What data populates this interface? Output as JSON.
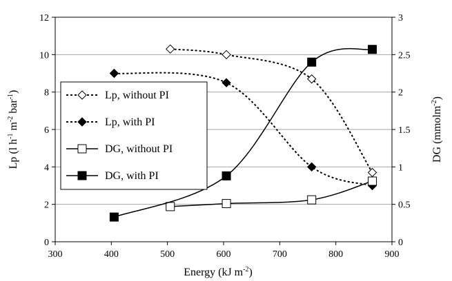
{
  "chart_data": {
    "type": "line",
    "xlabel": "Energy (kJ m",
    "xlabel_sup": "-2",
    "xlabel_end": ")",
    "ylabel_left": {
      "a": "Lp (l h",
      "s1": "-1",
      "b": " m",
      "s2": "-2",
      "c": " bar",
      "s3": "-1",
      "d": ")"
    },
    "ylabel_right": {
      "a": "DG (mmolm",
      "s1": "-2",
      "b": ")"
    },
    "xlim": [
      300,
      900
    ],
    "ylim_left": [
      0,
      12
    ],
    "ylim_right": [
      0,
      3
    ],
    "x_ticks": [
      300,
      400,
      500,
      600,
      700,
      800,
      900
    ],
    "y_left_ticks": [
      0,
      2,
      4,
      6,
      8,
      10,
      12
    ],
    "y_right_ticks": [
      "0",
      "0.5",
      "1",
      "1.5",
      "2",
      "2.5",
      "3"
    ],
    "y_right_tick_values": [
      0,
      0.5,
      1,
      1.5,
      2,
      2.5,
      3
    ],
    "grid": "horizontal",
    "legend_position": "left",
    "series": [
      {
        "name": "Lp, without PI",
        "axis": "left",
        "marker": "diamond-open",
        "line": "dotted",
        "x": [
          505,
          605,
          757,
          865
        ],
        "y": [
          10.3,
          10.0,
          8.7,
          3.7
        ]
      },
      {
        "name": "Lp, with PI",
        "axis": "left",
        "marker": "diamond-filled",
        "line": "dotted",
        "x": [
          405,
          605,
          757,
          865
        ],
        "y": [
          9.0,
          8.5,
          4.0,
          3.0
        ]
      },
      {
        "name": "DG, without PI",
        "axis": "right",
        "marker": "square-open",
        "line": "solid",
        "x": [
          505,
          605,
          757,
          865
        ],
        "y": [
          0.47,
          0.51,
          0.56,
          0.81
        ]
      },
      {
        "name": "DG, with PI",
        "axis": "right",
        "marker": "square-filled",
        "line": "solid",
        "x": [
          405,
          605,
          757,
          865
        ],
        "y": [
          0.33,
          0.88,
          2.4,
          2.57
        ]
      }
    ]
  }
}
